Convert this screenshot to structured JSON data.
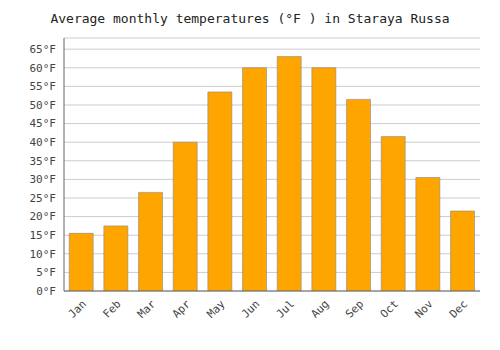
{
  "chart_data": {
    "type": "bar",
    "title": "Average monthly temperatures (°F ) in Staraya Russa",
    "categories": [
      "Jan",
      "Feb",
      "Mar",
      "Apr",
      "May",
      "Jun",
      "Jul",
      "Aug",
      "Sep",
      "Oct",
      "Nov",
      "Dec"
    ],
    "values": [
      15.5,
      17.5,
      26.5,
      40.0,
      53.5,
      60.0,
      63.0,
      60.0,
      51.5,
      41.5,
      30.5,
      21.5
    ],
    "color": "#FFA500",
    "ylim": [
      0,
      68
    ],
    "yticks": [
      {
        "value": 0,
        "label": "0°F"
      },
      {
        "value": 5,
        "label": "5°F"
      },
      {
        "value": 10,
        "label": "10°F"
      },
      {
        "value": 15,
        "label": "15°F"
      },
      {
        "value": 20,
        "label": "20°F"
      },
      {
        "value": 25,
        "label": "25°F"
      },
      {
        "value": 30,
        "label": "30°F"
      },
      {
        "value": 35,
        "label": "35°F"
      },
      {
        "value": 40,
        "label": "40°F"
      },
      {
        "value": 45,
        "label": "45°F"
      },
      {
        "value": 50,
        "label": "50°F"
      },
      {
        "value": 55,
        "label": "55°F"
      },
      {
        "value": 60,
        "label": "60°F"
      },
      {
        "value": 65,
        "label": "65°F"
      }
    ],
    "grid": true
  }
}
